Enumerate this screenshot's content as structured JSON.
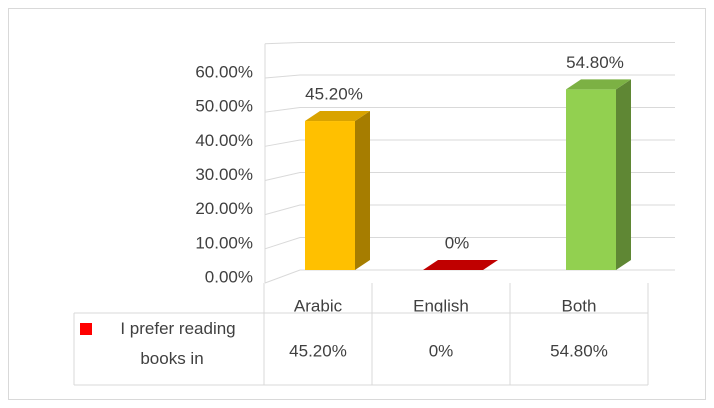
{
  "chart_data": {
    "type": "bar3d",
    "categories": [
      "Arabic",
      "English",
      "Both"
    ],
    "series": [
      {
        "name": "I prefer reading books in",
        "color": "#FF0000",
        "values": [
          45.2,
          0,
          54.8
        ],
        "value_labels": [
          "45.20%",
          "0%",
          "54.80%"
        ],
        "colors": [
          "#FFC000",
          "#C00000",
          "#92D050"
        ]
      }
    ],
    "ylim": [
      0,
      70
    ],
    "yticks": [
      {
        "value": 0,
        "label": "0.00%"
      },
      {
        "value": 10,
        "label": "10.00%"
      },
      {
        "value": 20,
        "label": "20.00%"
      },
      {
        "value": 30,
        "label": "30.00%"
      },
      {
        "value": 40,
        "label": "40.00%"
      },
      {
        "value": 50,
        "label": "50.00%"
      },
      {
        "value": 60,
        "label": "60.00%"
      }
    ],
    "grid": true
  }
}
